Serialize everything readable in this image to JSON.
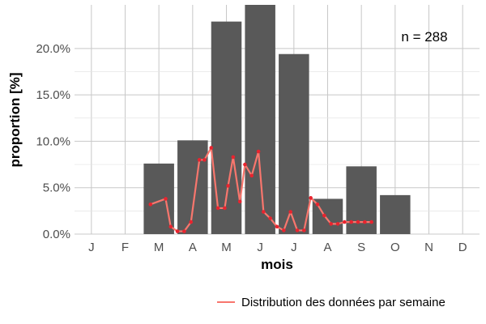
{
  "chart_data": {
    "type": "bar",
    "categories": [
      "J",
      "F",
      "M",
      "A",
      "M",
      "J",
      "J",
      "A",
      "S",
      "O",
      "N",
      "D"
    ],
    "values": [
      0,
      0,
      7.6,
      10.1,
      22.9,
      24.7,
      19.4,
      3.8,
      7.3,
      4.2,
      0,
      0
    ],
    "xlabel": "mois",
    "ylabel": "proportion [%]",
    "ylim": [
      0,
      24.7
    ],
    "yticks": [
      0,
      5,
      10,
      15,
      20
    ],
    "ytick_labels": [
      "0.0%",
      "5.0%",
      "10.0%",
      "15.0%",
      "20.0%"
    ],
    "annotation": "n = 288",
    "grid": true,
    "legend_position": "bottom",
    "bar_color": "#595959",
    "line_series": {
      "name": "Distribution des données par semaine",
      "color": "#f8766d",
      "point_color": "#e8242f",
      "x": [
        2.75,
        3.2,
        3.35,
        3.55,
        3.75,
        3.95,
        4.2,
        4.35,
        4.55,
        4.75,
        4.95,
        5.05,
        5.2,
        5.4,
        5.55,
        5.75,
        5.95,
        6.1,
        6.3,
        6.5,
        6.7,
        6.9,
        7.1,
        7.3,
        7.5,
        7.7,
        7.9,
        8.1,
        8.3,
        8.5,
        8.7,
        8.9,
        9.1,
        9.3
      ],
      "y": [
        3.2,
        3.8,
        0.8,
        0.3,
        0.3,
        1.3,
        8.0,
        8.0,
        9.3,
        2.8,
        2.8,
        5.2,
        8.3,
        3.5,
        7.5,
        6.3,
        8.9,
        2.4,
        1.7,
        0.8,
        0.4,
        2.4,
        0.4,
        0.4,
        3.9,
        3.2,
        2.0,
        1.1,
        1.1,
        1.3,
        1.3,
        1.3,
        1.3,
        1.3
      ]
    }
  }
}
